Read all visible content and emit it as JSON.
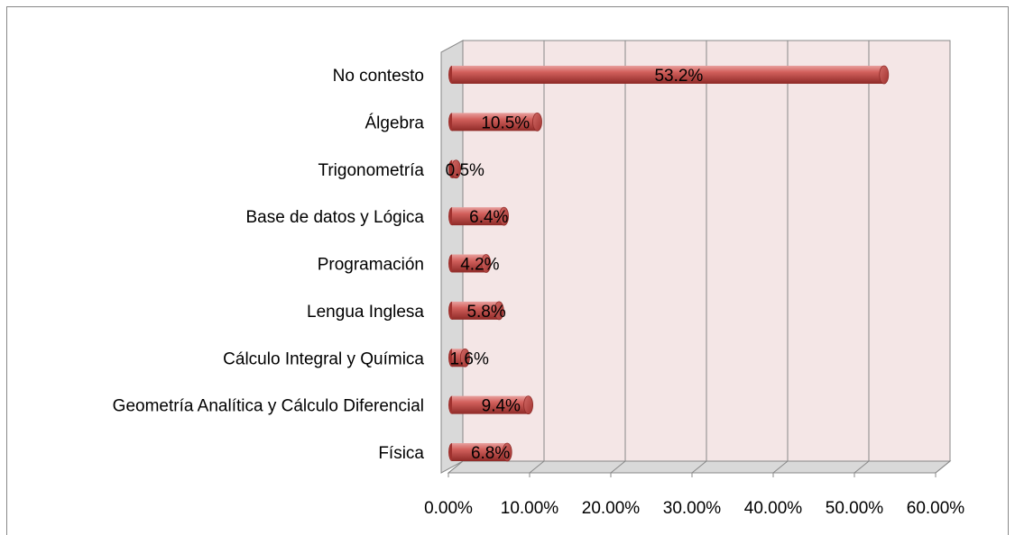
{
  "chart_data": {
    "type": "bar",
    "orientation": "horizontal",
    "categories": [
      "No contesto",
      "Álgebra",
      "Trigonometría",
      "Base de datos y Lógica",
      "Programación",
      "Lengua Inglesa",
      "Cálculo Integral y Química",
      "Geometría Analítica y Cálculo Diferencial",
      "Física"
    ],
    "values": [
      53.2,
      10.5,
      0.5,
      6.4,
      4.2,
      5.8,
      1.6,
      9.4,
      6.8
    ],
    "value_labels": [
      "53.2%",
      "10.5%",
      "0.5%",
      "6.4%",
      "4.2%",
      "5.8%",
      "1.6%",
      "9.4%",
      "6.8%"
    ],
    "color": "#c0504d",
    "xlim": [
      0,
      60
    ],
    "xticks": [
      {
        "value": 0,
        "label": "0.00%"
      },
      {
        "value": 10,
        "label": "10.00%"
      },
      {
        "value": 20,
        "label": "20.00%"
      },
      {
        "value": 30,
        "label": "30.00%"
      },
      {
        "value": 40,
        "label": "40.00%"
      },
      {
        "value": 50,
        "label": "50.00%"
      },
      {
        "value": 60,
        "label": "60.00%"
      }
    ],
    "grid": true
  }
}
